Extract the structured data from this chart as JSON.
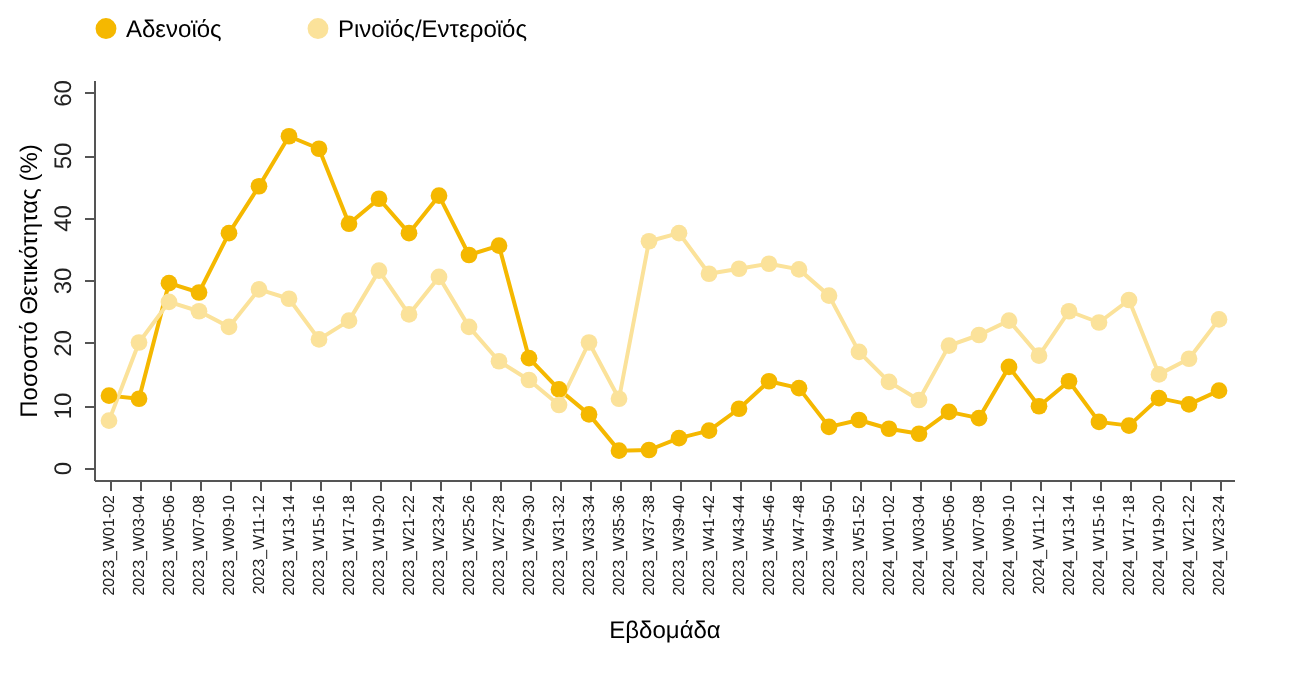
{
  "chart_data": {
    "type": "line",
    "xlabel": "Εβδομάδα",
    "ylabel": "Ποσοστό Θετικότητας (%)",
    "categories": [
      "2023_W01-02",
      "2023_W03-04",
      "2023_W05-06",
      "2023_W07-08",
      "2023_W09-10",
      "2023_W11-12",
      "2023_W13-14",
      "2023_W15-16",
      "2023_W17-18",
      "2023_W19-20",
      "2023_W21-22",
      "2023_W23-24",
      "2023_W25-26",
      "2023_W27-28",
      "2023_W29-30",
      "2023_W31-32",
      "2023_W33-34",
      "2023_W35-36",
      "2023_W37-38",
      "2023_W39-40",
      "2023_W41-42",
      "2023_W43-44",
      "2023_W45-46",
      "2023_W47-48",
      "2023_W49-50",
      "2023_W51-52",
      "2024_W01-02",
      "2024_W03-04",
      "2024_W05-06",
      "2024_W07-08",
      "2024_W09-10",
      "2024_W11-12",
      "2024_W13-14",
      "2024_W15-16",
      "2024_W17-18",
      "2024_W19-20",
      "2024_W21-22",
      "2024_W23-24"
    ],
    "series": [
      {
        "name": "Αδενοϊός",
        "color": "#f5b800",
        "values": [
          11.5,
          11,
          29.5,
          28,
          37.5,
          45,
          53,
          51,
          39,
          43,
          37.5,
          43.5,
          34,
          35.5,
          17.5,
          12.5,
          8.5,
          2.7,
          2.8,
          4.7,
          5.9,
          9.4,
          13.8,
          12.7,
          6.5,
          7.6,
          6.2,
          5.4,
          8.9,
          7.9,
          16.1,
          9.8,
          13.8,
          7.3,
          6.7,
          11.1,
          10.1,
          12.3
        ]
      },
      {
        "name": "Ρινοϊός/Εντεροϊός",
        "color": "#fbe29a",
        "values": [
          7.5,
          20,
          26.5,
          25,
          22.5,
          28.5,
          27,
          20.5,
          23.5,
          31.5,
          24.5,
          30.5,
          22.5,
          17,
          14,
          10,
          20,
          11,
          36.2,
          37.5,
          31,
          31.8,
          32.6,
          31.7,
          27.5,
          18.5,
          13.7,
          10.8,
          19.5,
          21.2,
          23.5,
          17.9,
          25,
          23.2,
          26.8,
          14.9,
          17.4,
          23.7
        ]
      }
    ],
    "ylim": [
      -2,
      62
    ],
    "yticks": [
      0,
      10,
      20,
      30,
      40,
      50,
      60
    ],
    "grid": false,
    "legend": "top",
    "marker": "circle",
    "line_style": "solid"
  }
}
